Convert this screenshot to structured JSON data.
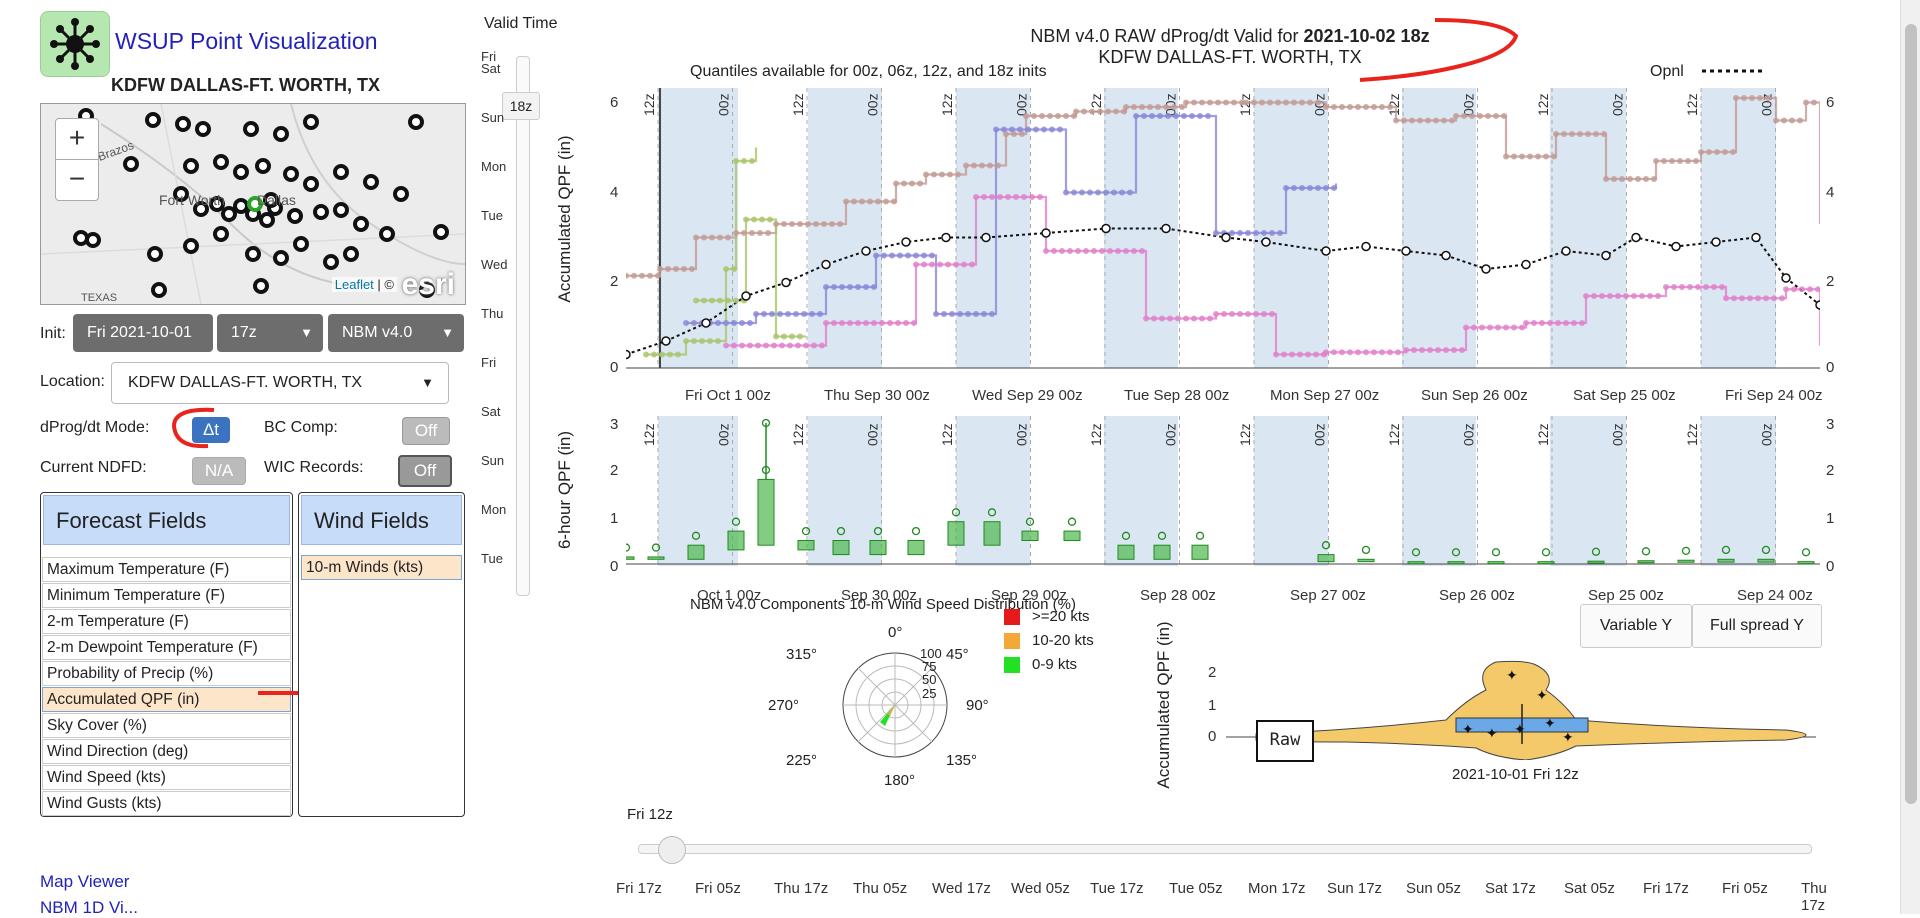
{
  "app": {
    "title": "WSUP Point Visualization",
    "station": "KDFW DALLAS-FT. WORTH, TX"
  },
  "map": {
    "zoom_in": "+",
    "zoom_out": "−",
    "attribution_link": "Leaflet",
    "attribution_rest": " | ©",
    "esri": "esri",
    "cities": [
      "Fort Worth",
      "Dallas",
      "Brazos",
      "TEXAS"
    ]
  },
  "controls": {
    "init_label": "Init:",
    "init_date": "Fri 2021-10-01",
    "init_hour": "17z",
    "model": "NBM v4.0",
    "location_label": "Location:",
    "location_value": "KDFW DALLAS-FT. WORTH, TX",
    "dprog_label": "dProg/dt Mode:",
    "dprog_value": "Δt",
    "bc_label": "BC Comp:",
    "bc_value": "Off",
    "ndfd_label": "Current NDFD:",
    "ndfd_value": "N/A",
    "wic_label": "WIC Records:",
    "wic_value": "Off"
  },
  "forecast_fields": {
    "header": "Forecast Fields",
    "items": [
      "Maximum Temperature (F)",
      "Minimum Temperature (F)",
      "2-m Temperature (F)",
      "2-m Dewpoint Temperature (F)",
      "Probability of Precip (%)",
      "Accumulated QPF (in)",
      "Sky Cover (%)",
      "Wind Direction (deg)",
      "Wind Speed (kts)",
      "Wind Gusts (kts)"
    ]
  },
  "wind_fields": {
    "header": "Wind Fields",
    "items": [
      "10-m Winds (kts)"
    ]
  },
  "valid_time": {
    "label": "Valid Time",
    "days": [
      "Fri",
      "Sat",
      "Sun",
      "Mon",
      "Tue",
      "Wed",
      "Thu",
      "Fri",
      "Sat",
      "Sun",
      "Mon",
      "Tue"
    ],
    "handle": "18z"
  },
  "main_chart": {
    "title_prefix": "NBM v4.0 RAW dProg/dt Valid for ",
    "title_bold": "2021-10-02 18z",
    "subtitle": "KDFW DALLAS-FT. WORTH, TX",
    "note": "Quantiles available for 00z, 06z, 12z, and 18z inits",
    "opnl": "Opnl",
    "ylabel": "Accumulated QPF (in)",
    "yticks": [
      "0",
      "2",
      "4",
      "6"
    ],
    "xticks": [
      "Fri Oct  1 00z",
      "Thu Sep 30 00z",
      "Wed Sep 29 00z",
      "Tue Sep 28 00z",
      "Mon Sep 27 00z",
      "Sun Sep 26 00z",
      "Sat Sep 25 00z",
      "Fri Sep 24 00z"
    ]
  },
  "bar_chart": {
    "ylabel": "6-hour QPF (in)",
    "yticks": [
      "0",
      "1",
      "2",
      "3"
    ],
    "xticks": [
      "Oct  1",
      "Sep 30",
      "Sep 29",
      "Sep 28",
      "Sep 27",
      "Sep 26",
      "Sep 25",
      "Sep 24"
    ],
    "xtick_suffix": " 00z"
  },
  "buttons": {
    "variable_y": "Variable Y",
    "full_spread_y": "Full spread Y"
  },
  "wind_rose": {
    "title": "NBM v4.0 Components 10-m Wind Speed Distribution (%)",
    "dirs": [
      "0°",
      "45°",
      "90°",
      "135°",
      "180°",
      "225°",
      "270°",
      "315°"
    ],
    "rings": [
      "100",
      "75",
      "50",
      "25"
    ],
    "legend": [
      ">=20 kts",
      "10-20 kts",
      "0-9 kts"
    ],
    "legend_colors": [
      "#e41a1c",
      "#f3a93a",
      "#22e022"
    ]
  },
  "violin": {
    "ylabel": "Accumulated QPF (in)",
    "yticks": [
      "0",
      "1",
      "2"
    ],
    "raw": "Raw",
    "xlabel": "2021-10-01 Fri 12z"
  },
  "bottom_slider": {
    "label": "Fri 12z",
    "ticks": [
      "Fri 17z",
      "Fri 05z",
      "Thu 17z",
      "Thu 05z",
      "Wed 17z",
      "Wed 05z",
      "Tue 17z",
      "Tue 05z",
      "Mon 17z",
      "Sun 17z",
      "Sun 05z",
      "Sat 17z",
      "Sat 05z",
      "Fri 17z",
      "Fri 05z",
      "Thu 17z"
    ]
  },
  "links": [
    "Map Viewer",
    "NBM 1D Vi..."
  ]
}
